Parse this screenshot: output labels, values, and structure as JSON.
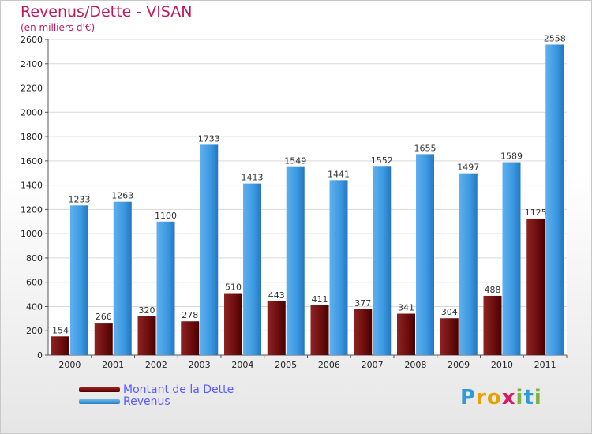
{
  "header": {
    "title": "Revenus/Dette - VISAN",
    "subtitle": "(en milliers d'€)"
  },
  "legend": {
    "items": [
      {
        "label": "Montant de la Dette",
        "color": "#7a0f0f"
      },
      {
        "label": "Revenus",
        "color": "#3b98e0"
      }
    ]
  },
  "logo": {
    "letters": [
      "P",
      "r",
      "o",
      "x",
      "i",
      "t",
      "i"
    ],
    "colors": [
      "#2f9bd6",
      "#e8a200",
      "#e8a200",
      "#d81b60",
      "#7cb342",
      "#2f9bd6",
      "#7cb342"
    ]
  },
  "chart_data": {
    "type": "bar",
    "categories": [
      "2000",
      "2001",
      "2002",
      "2003",
      "2004",
      "2005",
      "2006",
      "2007",
      "2008",
      "2009",
      "2010",
      "2011"
    ],
    "series": [
      {
        "name": "Montant de la Dette",
        "color": "#7a0f0f",
        "values": [
          154,
          266,
          320,
          278,
          510,
          443,
          411,
          377,
          341,
          304,
          488,
          1125
        ]
      },
      {
        "name": "Revenus",
        "color": "#3b98e0",
        "values": [
          1233,
          1263,
          1100,
          1733,
          1413,
          1549,
          1441,
          1552,
          1655,
          1497,
          1589,
          2558
        ]
      }
    ],
    "title": "Revenus/Dette - VISAN",
    "ylabel": "(en milliers d'€)",
    "ylim": [
      0,
      2600
    ],
    "yticks": [
      0,
      200,
      400,
      600,
      800,
      1000,
      1200,
      1400,
      1600,
      1800,
      2000,
      2200,
      2400,
      2600
    ],
    "grid": true,
    "legend_position": "bottom-left"
  }
}
